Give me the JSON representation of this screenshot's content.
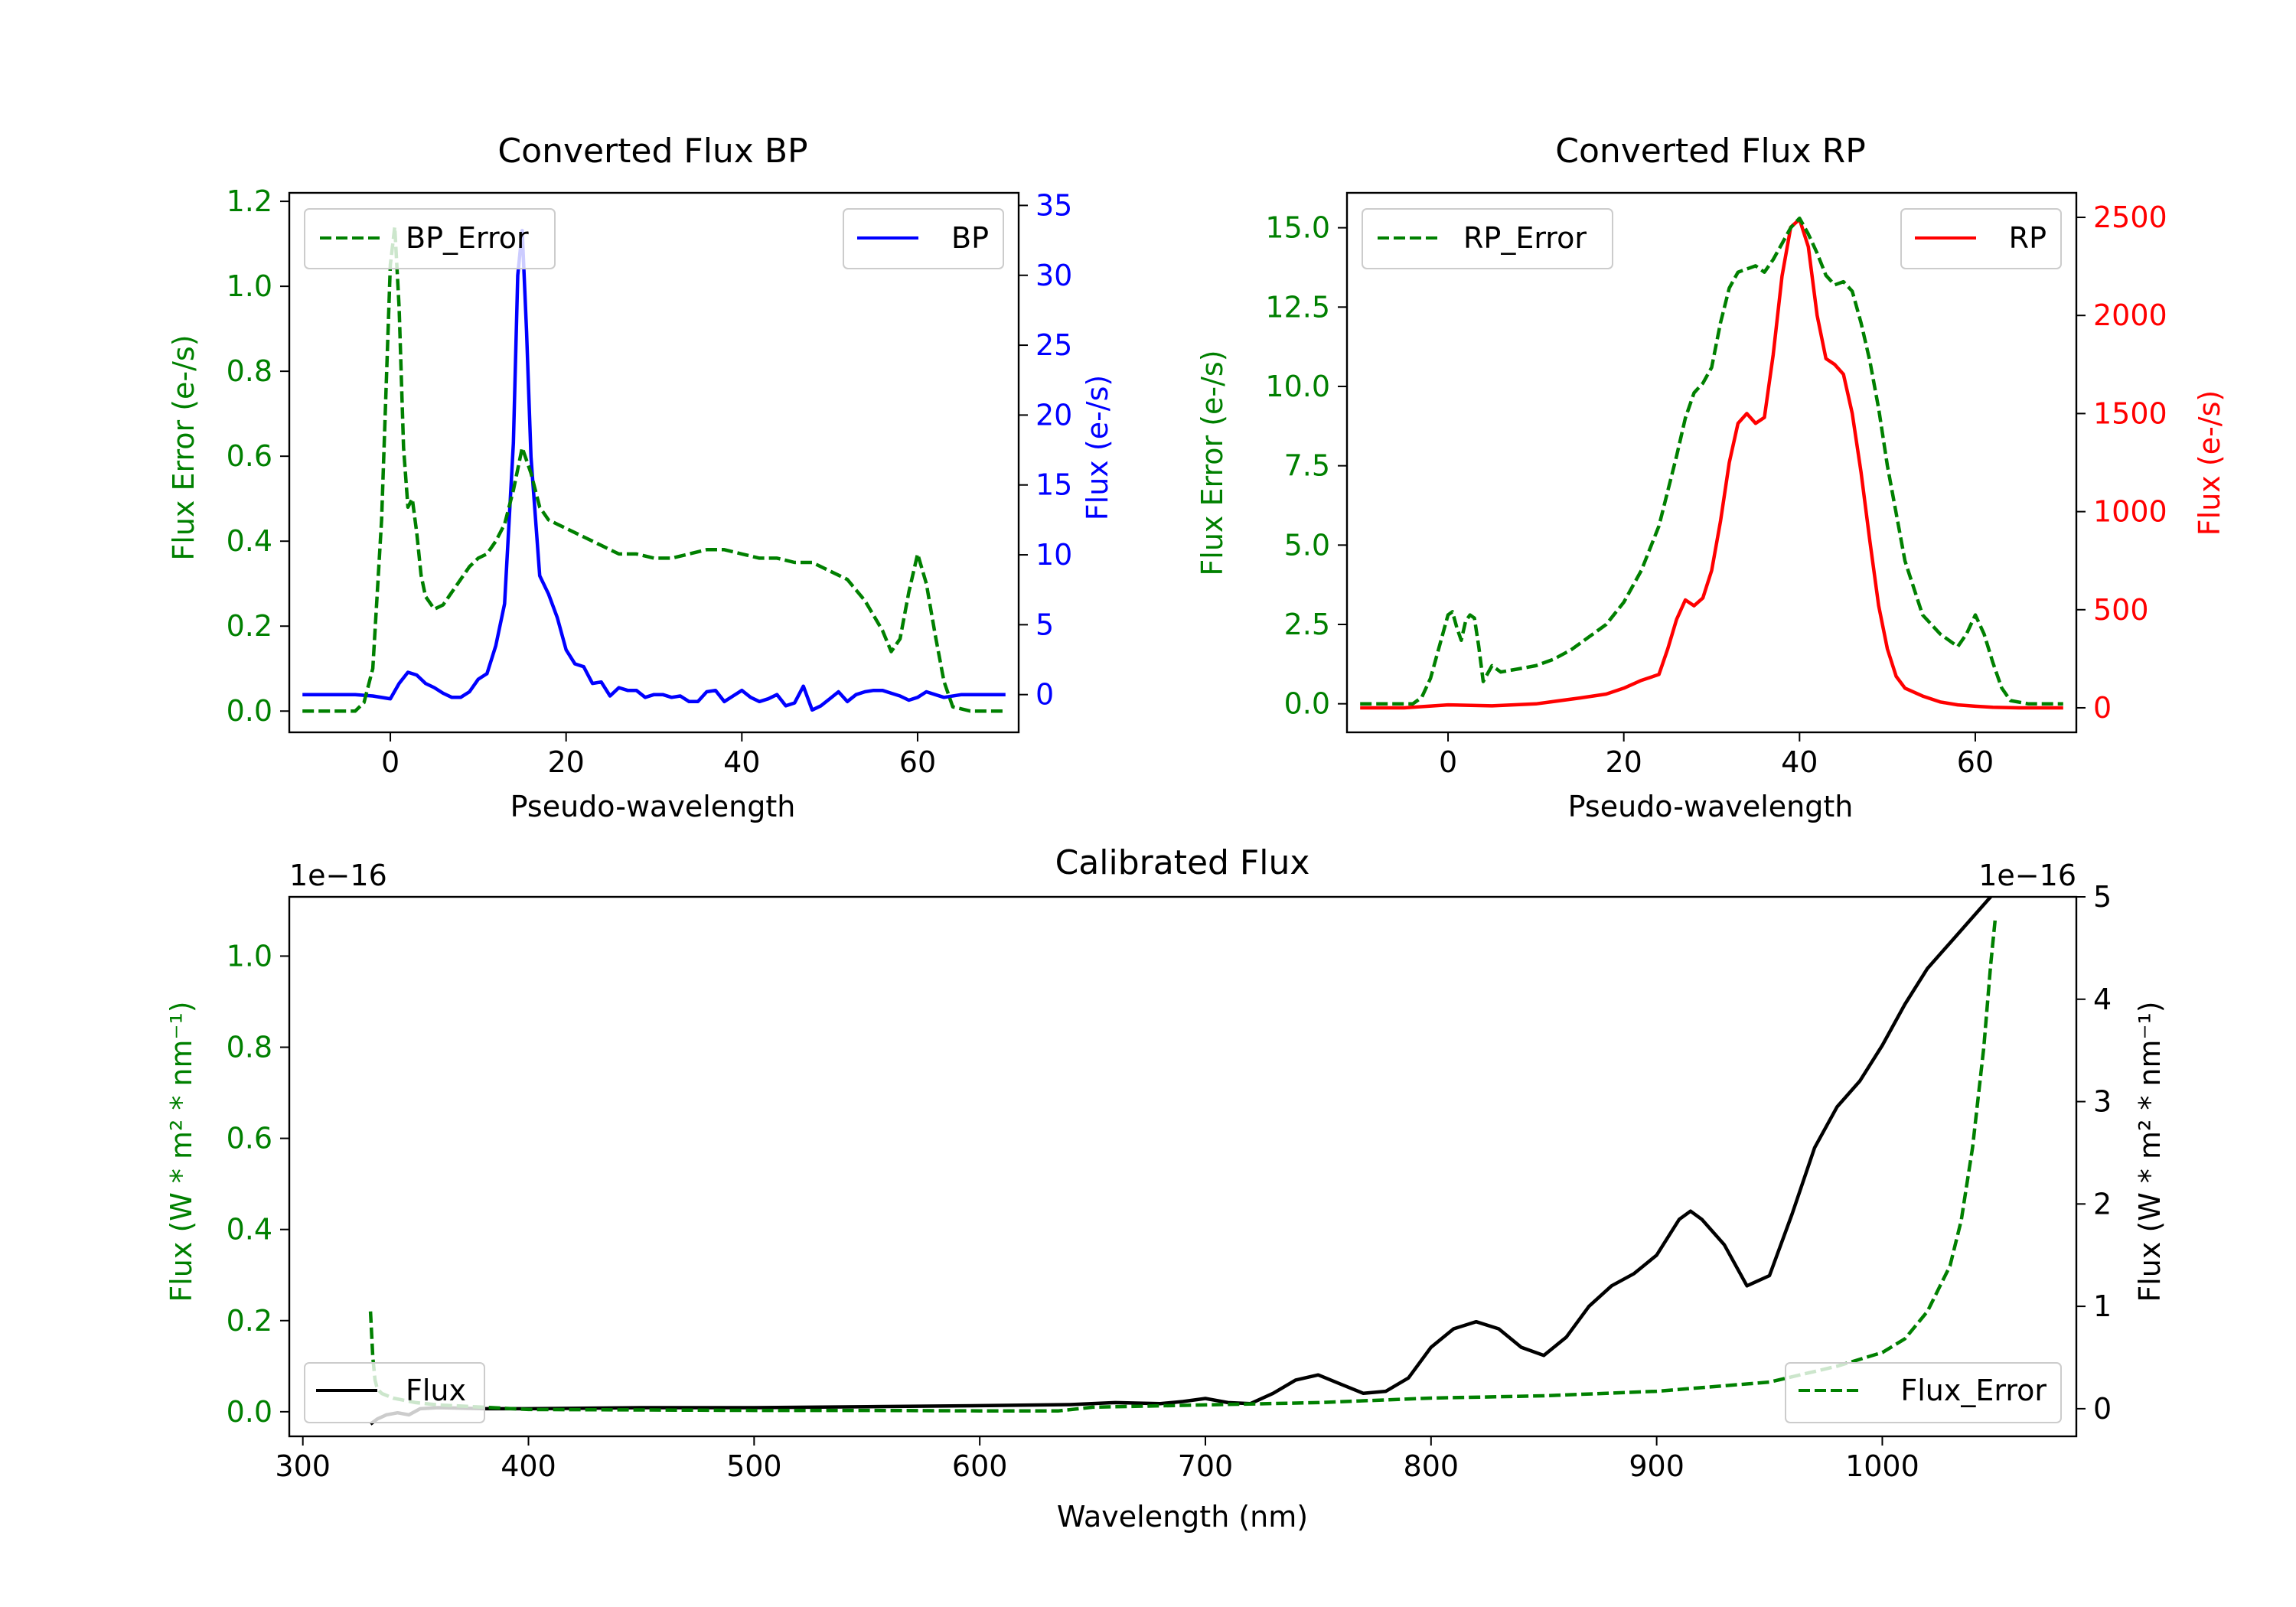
{
  "colors": {
    "bp": "#0000ff",
    "rp": "#ff0000",
    "error": "#008000",
    "flux": "#000000",
    "axis": "#000000"
  },
  "chart_data": [
    {
      "id": "bp",
      "type": "line",
      "title": "Converted Flux BP",
      "xlabel": "Pseudo-wavelength",
      "ylabel_left": "Flux Error (e-/s)",
      "ylabel_right": "Flux (e-/s)",
      "xlim": [
        -11.5,
        71.5
      ],
      "ylim_left": [
        -0.05,
        1.22
      ],
      "ylim_right": [
        -2.7,
        35.9
      ],
      "xticks": [
        "0",
        "20",
        "40",
        "60"
      ],
      "yticks_left": [
        "0.0",
        "0.2",
        "0.4",
        "0.6",
        "0.8",
        "1.0",
        "1.2"
      ],
      "yticks_right": [
        "0",
        "5",
        "10",
        "15",
        "20",
        "25",
        "30",
        "35"
      ],
      "legend_left": "BP_Error",
      "legend_right": "BP",
      "series_right": {
        "name": "BP",
        "x": [
          -10,
          -4,
          -2,
          0,
          1,
          2,
          3,
          4,
          5,
          6,
          7,
          8,
          9,
          10,
          11,
          12,
          13,
          14,
          14.5,
          15,
          15.5,
          16,
          17,
          18,
          19,
          20,
          21,
          22,
          23,
          24,
          25,
          26,
          27,
          28,
          29,
          30,
          31,
          32,
          33,
          34,
          35,
          36,
          37,
          38,
          39,
          40,
          41,
          42,
          43,
          44,
          45,
          46,
          47,
          48,
          49,
          50,
          51,
          52,
          53,
          54,
          55,
          56,
          57,
          58,
          59,
          60,
          61,
          62,
          63,
          65,
          70
        ],
        "values": [
          0,
          0,
          -0.1,
          -0.3,
          0.8,
          1.6,
          1.4,
          0.8,
          0.5,
          0.1,
          -0.2,
          -0.2,
          0.2,
          1.1,
          1.5,
          3.5,
          6.5,
          18,
          30,
          33.2,
          26,
          17,
          8.5,
          7.2,
          5.5,
          3.2,
          2.2,
          2.0,
          0.8,
          0.9,
          -0.1,
          0.5,
          0.3,
          0.3,
          -0.2,
          0.0,
          0.0,
          -0.2,
          -0.1,
          -0.5,
          -0.5,
          0.2,
          0.3,
          -0.5,
          -0.1,
          0.3,
          -0.2,
          -0.5,
          -0.3,
          0.0,
          -0.8,
          -0.6,
          0.6,
          -1.1,
          -0.8,
          -0.3,
          0.2,
          -0.5,
          0.0,
          0.2,
          0.3,
          0.3,
          0.1,
          -0.1,
          -0.4,
          -0.2,
          0.2,
          0.0,
          -0.2,
          0.0,
          0.0
        ]
      },
      "series_left": {
        "name": "BP_Error",
        "x": [
          -10,
          -4,
          -3,
          -2,
          -1,
          0,
          0.5,
          1,
          1.5,
          2,
          2.5,
          3,
          3.5,
          4,
          5,
          6,
          7,
          8,
          9,
          10,
          11,
          12,
          13,
          14,
          15,
          16,
          17,
          18,
          19,
          20,
          22,
          24,
          26,
          28,
          30,
          32,
          34,
          36,
          38,
          40,
          42,
          44,
          46,
          48,
          50,
          52,
          54,
          56,
          57,
          58,
          59,
          60,
          61,
          62,
          63,
          64,
          66,
          70
        ],
        "values": [
          0.0,
          0.0,
          0.02,
          0.1,
          0.45,
          1.05,
          1.14,
          0.95,
          0.62,
          0.48,
          0.5,
          0.42,
          0.32,
          0.27,
          0.24,
          0.25,
          0.28,
          0.31,
          0.34,
          0.36,
          0.37,
          0.4,
          0.44,
          0.52,
          0.62,
          0.56,
          0.48,
          0.45,
          0.44,
          0.43,
          0.41,
          0.39,
          0.37,
          0.37,
          0.36,
          0.36,
          0.37,
          0.38,
          0.38,
          0.37,
          0.36,
          0.36,
          0.35,
          0.35,
          0.33,
          0.31,
          0.26,
          0.19,
          0.14,
          0.17,
          0.28,
          0.37,
          0.3,
          0.18,
          0.07,
          0.01,
          0.0,
          0.0
        ]
      }
    },
    {
      "id": "rp",
      "type": "line",
      "title": "Converted Flux RP",
      "xlabel": "Pseudo-wavelength",
      "ylabel_left": "Flux Error (e-/s)",
      "ylabel_right": "Flux (e-/s)",
      "xlim": [
        -11.5,
        71.5
      ],
      "ylim_left": [
        -0.9,
        16.1
      ],
      "ylim_right": [
        -125,
        2625
      ],
      "xticks": [
        "0",
        "20",
        "40",
        "60"
      ],
      "yticks_left": [
        "0.0",
        "2.5",
        "5.0",
        "7.5",
        "10.0",
        "12.5",
        "15.0"
      ],
      "yticks_right": [
        "0",
        "500",
        "1000",
        "1500",
        "2000",
        "2500"
      ],
      "legend_left": "RP_Error",
      "legend_right": "RP",
      "series_right": {
        "name": "RP",
        "x": [
          -10,
          -5,
          0,
          5,
          10,
          15,
          18,
          20,
          22,
          24,
          25,
          26,
          27,
          28,
          29,
          30,
          31,
          32,
          33,
          34,
          35,
          36,
          37,
          38,
          39,
          40,
          41,
          42,
          43,
          44,
          45,
          46,
          47,
          48,
          49,
          50,
          51,
          52,
          54,
          56,
          58,
          60,
          62,
          65,
          70
        ],
        "values": [
          0,
          0,
          15,
          10,
          20,
          50,
          70,
          100,
          140,
          170,
          300,
          450,
          550,
          520,
          560,
          700,
          950,
          1250,
          1450,
          1500,
          1450,
          1480,
          1800,
          2200,
          2450,
          2490,
          2350,
          2000,
          1780,
          1750,
          1700,
          1500,
          1200,
          850,
          520,
          300,
          160,
          100,
          60,
          30,
          15,
          8,
          3,
          0,
          0
        ]
      },
      "series_left": {
        "name": "RP_Error",
        "x": [
          -10,
          -4,
          -3,
          -2,
          -1,
          0,
          0.5,
          1,
          1.5,
          2,
          2.5,
          3,
          3.5,
          4,
          5,
          6,
          8,
          10,
          12,
          14,
          16,
          18,
          20,
          22,
          24,
          26,
          27,
          28,
          29,
          30,
          31,
          32,
          33,
          34,
          35,
          36,
          37,
          38,
          39,
          40,
          41,
          42,
          43,
          44,
          45,
          46,
          47,
          48,
          49,
          50,
          52,
          54,
          56,
          57,
          58,
          59,
          60,
          61,
          62,
          63,
          64,
          66,
          70
        ],
        "values": [
          0,
          0,
          0.2,
          0.8,
          1.8,
          2.8,
          2.9,
          2.4,
          2.0,
          2.6,
          2.8,
          2.7,
          1.8,
          0.7,
          1.2,
          1.0,
          1.1,
          1.2,
          1.4,
          1.7,
          2.1,
          2.5,
          3.2,
          4.2,
          5.6,
          7.8,
          9.0,
          9.8,
          10.1,
          10.6,
          12.0,
          13.1,
          13.6,
          13.7,
          13.8,
          13.6,
          14.0,
          14.5,
          15.0,
          15.3,
          14.8,
          14.2,
          13.5,
          13.2,
          13.3,
          13.0,
          12.0,
          10.8,
          9.3,
          7.5,
          4.5,
          2.8,
          2.2,
          2.0,
          1.8,
          2.2,
          2.8,
          2.2,
          1.3,
          0.5,
          0.1,
          0,
          0
        ]
      }
    },
    {
      "id": "cal",
      "type": "line",
      "title": "Calibrated Flux",
      "xlabel": "Wavelength (nm)",
      "ylabel_left": "Flux (W * m² * nm⁻¹)",
      "ylabel_right": "Flux (W * m² * nm⁻¹)",
      "offset_left": "1e−16",
      "offset_right": "1e−16",
      "xlim": [
        294,
        1086
      ],
      "ylim_left": [
        -0.054,
        1.13
      ],
      "ylim_right": [
        -0.27,
        5.0
      ],
      "xticks": [
        "300",
        "400",
        "500",
        "600",
        "700",
        "800",
        "900",
        "1000"
      ],
      "yticks_left": [
        "0.0",
        "0.2",
        "0.4",
        "0.6",
        "0.8",
        "1.0"
      ],
      "yticks_right": [
        "0",
        "1",
        "2",
        "3",
        "4",
        "5"
      ],
      "legend_left": "Flux",
      "legend_right": "Flux_Error",
      "series_right": {
        "name": "Flux",
        "x": [
          330,
          333,
          337,
          342,
          347,
          352,
          360,
          380,
          400,
          450,
          500,
          550,
          600,
          640,
          660,
          680,
          690,
          700,
          710,
          720,
          730,
          740,
          750,
          760,
          770,
          780,
          790,
          800,
          810,
          820,
          830,
          840,
          850,
          860,
          870,
          880,
          890,
          900,
          910,
          915,
          920,
          930,
          940,
          950,
          960,
          970,
          980,
          990,
          1000,
          1010,
          1020,
          1030,
          1040,
          1050
        ],
        "values": [
          -0.15,
          -0.1,
          -0.06,
          -0.04,
          -0.06,
          0.0,
          0.01,
          0.0,
          0.0,
          0.01,
          0.01,
          0.02,
          0.03,
          0.04,
          0.06,
          0.05,
          0.07,
          0.1,
          0.06,
          0.05,
          0.15,
          0.28,
          0.33,
          0.24,
          0.15,
          0.17,
          0.3,
          0.6,
          0.78,
          0.85,
          0.78,
          0.6,
          0.52,
          0.7,
          1.0,
          1.2,
          1.32,
          1.5,
          1.85,
          1.93,
          1.85,
          1.6,
          1.2,
          1.3,
          1.9,
          2.55,
          2.95,
          3.2,
          3.55,
          3.95,
          4.3,
          4.55,
          4.8,
          5.05
        ]
      },
      "series_left": {
        "name": "Flux_Error",
        "x": [
          330,
          331,
          332,
          333,
          335,
          340,
          345,
          350,
          360,
          380,
          400,
          450,
          500,
          550,
          600,
          635,
          650,
          700,
          750,
          800,
          850,
          900,
          950,
          980,
          1000,
          1010,
          1020,
          1030,
          1035,
          1040,
          1045,
          1048,
          1050
        ],
        "values": [
          0.22,
          0.12,
          0.07,
          0.05,
          0.04,
          0.03,
          0.025,
          0.02,
          0.015,
          0.01,
          0.005,
          0.004,
          0.003,
          0.003,
          0.002,
          0.002,
          0.01,
          0.015,
          0.02,
          0.03,
          0.035,
          0.045,
          0.065,
          0.1,
          0.13,
          0.16,
          0.22,
          0.32,
          0.42,
          0.58,
          0.8,
          0.98,
          1.08
        ]
      }
    }
  ]
}
